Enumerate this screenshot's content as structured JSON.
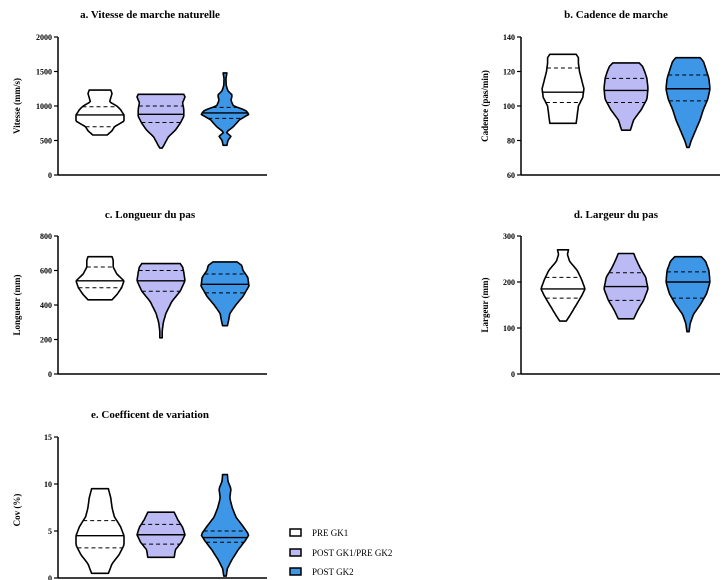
{
  "chart_data": [
    {
      "type": "violin",
      "title": "a. Vitesse de marche naturelle",
      "ylabel": "Vitesse (mm/s)",
      "ylim": [
        0,
        2000
      ],
      "yticks": [
        0,
        500,
        1000,
        1500,
        2000
      ],
      "series": [
        {
          "name": "PRE GK1",
          "min": 580,
          "q1": 700,
          "median": 870,
          "q3": 990,
          "max": 1230,
          "profile": [
            [
              580,
              0.3
            ],
            [
              640,
              0.5
            ],
            [
              700,
              0.6
            ],
            [
              780,
              1.0
            ],
            [
              870,
              1.0
            ],
            [
              950,
              0.85
            ],
            [
              1000,
              0.7
            ],
            [
              1060,
              0.4
            ],
            [
              1120,
              0.45
            ],
            [
              1180,
              0.5
            ],
            [
              1230,
              0.45
            ]
          ]
        },
        {
          "name": "POST GK1/PRE GK2",
          "min": 390,
          "q1": 760,
          "median": 880,
          "q3": 1000,
          "max": 1170,
          "profile": [
            [
              390,
              0.05
            ],
            [
              450,
              0.15
            ],
            [
              550,
              0.3
            ],
            [
              650,
              0.6
            ],
            [
              750,
              0.8
            ],
            [
              850,
              0.95
            ],
            [
              950,
              0.95
            ],
            [
              1050,
              0.9
            ],
            [
              1130,
              1.0
            ],
            [
              1170,
              0.95
            ]
          ]
        },
        {
          "name": "POST GK2",
          "min": 430,
          "q1": 820,
          "median": 900,
          "q3": 980,
          "max": 1480,
          "profile": [
            [
              430,
              0.08
            ],
            [
              500,
              0.12
            ],
            [
              560,
              0.25
            ],
            [
              620,
              0.05
            ],
            [
              700,
              0.35
            ],
            [
              800,
              0.6
            ],
            [
              880,
              1.0
            ],
            [
              940,
              0.85
            ],
            [
              1000,
              0.35
            ],
            [
              1080,
              0.25
            ],
            [
              1160,
              0.3
            ],
            [
              1220,
              0.12
            ],
            [
              1300,
              0.05
            ],
            [
              1400,
              0.04
            ],
            [
              1480,
              0.08
            ]
          ]
        }
      ]
    },
    {
      "type": "violin",
      "title": "b. Cadence de marche",
      "ylabel": "Cadence (pas/min)",
      "ylim": [
        60,
        140
      ],
      "yticks": [
        60,
        80,
        100,
        120,
        140
      ],
      "series": [
        {
          "name": "PRE GK1",
          "min": 90,
          "q1": 102,
          "median": 108,
          "q3": 122,
          "max": 130,
          "profile": [
            [
              90,
              0.6
            ],
            [
              95,
              0.65
            ],
            [
              100,
              0.7
            ],
            [
              105,
              0.9
            ],
            [
              110,
              0.95
            ],
            [
              115,
              0.85
            ],
            [
              120,
              0.75
            ],
            [
              125,
              0.7
            ],
            [
              128,
              0.7
            ],
            [
              130,
              0.6
            ]
          ]
        },
        {
          "name": "POST GK1/PRE GK2",
          "min": 86,
          "q1": 102,
          "median": 109,
          "q3": 116,
          "max": 125,
          "profile": [
            [
              86,
              0.2
            ],
            [
              92,
              0.35
            ],
            [
              98,
              0.7
            ],
            [
              104,
              0.95
            ],
            [
              110,
              1.0
            ],
            [
              116,
              0.95
            ],
            [
              120,
              0.85
            ],
            [
              123,
              0.75
            ],
            [
              125,
              0.6
            ]
          ]
        },
        {
          "name": "POST GK2",
          "min": 76,
          "q1": 103,
          "median": 110,
          "q3": 118,
          "max": 128,
          "profile": [
            [
              76,
              0.05
            ],
            [
              80,
              0.15
            ],
            [
              86,
              0.35
            ],
            [
              92,
              0.55
            ],
            [
              98,
              0.7
            ],
            [
              104,
              0.9
            ],
            [
              110,
              1.0
            ],
            [
              116,
              0.95
            ],
            [
              122,
              0.8
            ],
            [
              126,
              0.7
            ],
            [
              128,
              0.55
            ]
          ]
        }
      ]
    },
    {
      "type": "violin",
      "title": "c. Longueur du pas",
      "ylabel": "Longueur (mm)",
      "ylim": [
        0,
        800
      ],
      "yticks": [
        0,
        200,
        400,
        600,
        800
      ],
      "series": [
        {
          "name": "PRE GK1",
          "min": 430,
          "q1": 500,
          "median": 540,
          "q3": 620,
          "max": 680,
          "profile": [
            [
              430,
              0.5
            ],
            [
              460,
              0.7
            ],
            [
              500,
              0.9
            ],
            [
              540,
              1.0
            ],
            [
              580,
              0.7
            ],
            [
              620,
              0.55
            ],
            [
              660,
              0.55
            ],
            [
              680,
              0.5
            ]
          ]
        },
        {
          "name": "POST GK1/PRE GK2",
          "min": 210,
          "q1": 480,
          "median": 540,
          "q3": 600,
          "max": 640,
          "profile": [
            [
              210,
              0.05
            ],
            [
              250,
              0.05
            ],
            [
              300,
              0.1
            ],
            [
              350,
              0.2
            ],
            [
              420,
              0.45
            ],
            [
              480,
              0.8
            ],
            [
              540,
              1.0
            ],
            [
              590,
              0.95
            ],
            [
              620,
              0.9
            ],
            [
              640,
              0.8
            ]
          ]
        },
        {
          "name": "POST GK2",
          "min": 280,
          "q1": 470,
          "median": 520,
          "q3": 580,
          "max": 650,
          "profile": [
            [
              280,
              0.1
            ],
            [
              310,
              0.15
            ],
            [
              350,
              0.2
            ],
            [
              400,
              0.45
            ],
            [
              450,
              0.75
            ],
            [
              510,
              1.0
            ],
            [
              560,
              0.95
            ],
            [
              600,
              0.75
            ],
            [
              630,
              0.7
            ],
            [
              650,
              0.5
            ]
          ]
        }
      ]
    },
    {
      "type": "violin",
      "title": "d. Largeur du pas",
      "ylabel": "Largeur (mm)",
      "ylim": [
        0,
        300
      ],
      "yticks": [
        0,
        100,
        200,
        300
      ],
      "series": [
        {
          "name": "PRE GK1",
          "min": 115,
          "q1": 165,
          "median": 185,
          "q3": 210,
          "max": 270,
          "profile": [
            [
              115,
              0.15
            ],
            [
              130,
              0.35
            ],
            [
              150,
              0.6
            ],
            [
              170,
              0.85
            ],
            [
              185,
              1.0
            ],
            [
              205,
              0.85
            ],
            [
              225,
              0.65
            ],
            [
              245,
              0.3
            ],
            [
              260,
              0.2
            ],
            [
              270,
              0.25
            ]
          ]
        },
        {
          "name": "POST GK1/PRE GK2",
          "min": 120,
          "q1": 160,
          "median": 190,
          "q3": 220,
          "max": 262,
          "profile": [
            [
              120,
              0.35
            ],
            [
              140,
              0.55
            ],
            [
              160,
              0.8
            ],
            [
              185,
              1.0
            ],
            [
              210,
              0.9
            ],
            [
              230,
              0.65
            ],
            [
              250,
              0.45
            ],
            [
              262,
              0.35
            ]
          ]
        },
        {
          "name": "POST GK2",
          "min": 92,
          "q1": 165,
          "median": 200,
          "q3": 222,
          "max": 255,
          "profile": [
            [
              92,
              0.05
            ],
            [
              110,
              0.1
            ],
            [
              130,
              0.25
            ],
            [
              150,
              0.55
            ],
            [
              175,
              0.85
            ],
            [
              200,
              1.0
            ],
            [
              225,
              0.95
            ],
            [
              245,
              0.8
            ],
            [
              255,
              0.6
            ]
          ]
        }
      ]
    },
    {
      "type": "violin",
      "title": "e. Coefficent de variation",
      "ylabel": "Cov (%)",
      "ylim": [
        0,
        15
      ],
      "yticks": [
        0,
        5,
        10,
        15
      ],
      "series": [
        {
          "name": "PRE GK1",
          "min": 0.5,
          "q1": 3.2,
          "median": 4.5,
          "q3": 6.1,
          "max": 9.5,
          "profile": [
            [
              0.5,
              0.35
            ],
            [
              1.5,
              0.5
            ],
            [
              2.5,
              0.8
            ],
            [
              3.5,
              1.0
            ],
            [
              4.5,
              1.0
            ],
            [
              5.5,
              0.85
            ],
            [
              6.5,
              0.6
            ],
            [
              7.5,
              0.5
            ],
            [
              8.5,
              0.45
            ],
            [
              9.5,
              0.35
            ]
          ]
        },
        {
          "name": "POST GK1/PRE GK2",
          "min": 2.2,
          "q1": 3.6,
          "median": 4.6,
          "q3": 5.7,
          "max": 7.0,
          "profile": [
            [
              2.2,
              0.55
            ],
            [
              3.0,
              0.6
            ],
            [
              3.8,
              0.85
            ],
            [
              4.6,
              1.0
            ],
            [
              5.4,
              0.9
            ],
            [
              6.2,
              0.7
            ],
            [
              7.0,
              0.55
            ]
          ]
        },
        {
          "name": "POST GK2",
          "min": 0.2,
          "q1": 3.8,
          "median": 4.3,
          "q3": 5.0,
          "max": 11.0,
          "profile": [
            [
              0.2,
              0.05
            ],
            [
              1.0,
              0.1
            ],
            [
              2.0,
              0.3
            ],
            [
              3.0,
              0.55
            ],
            [
              4.0,
              0.85
            ],
            [
              4.6,
              1.0
            ],
            [
              5.5,
              0.75
            ],
            [
              6.5,
              0.45
            ],
            [
              7.5,
              0.3
            ],
            [
              8.5,
              0.2
            ],
            [
              9.5,
              0.25
            ],
            [
              10.3,
              0.12
            ],
            [
              11.0,
              0.1
            ]
          ]
        }
      ]
    }
  ],
  "legend": [
    {
      "label": "PRE GK1",
      "color": "#ffffff"
    },
    {
      "label": "POST GK1/PRE GK2",
      "color": "#bbbaf5"
    },
    {
      "label": "POST GK2",
      "color": "#3d96e6"
    }
  ],
  "colors": [
    "#ffffff",
    "#bbbaf5",
    "#3d96e6"
  ]
}
